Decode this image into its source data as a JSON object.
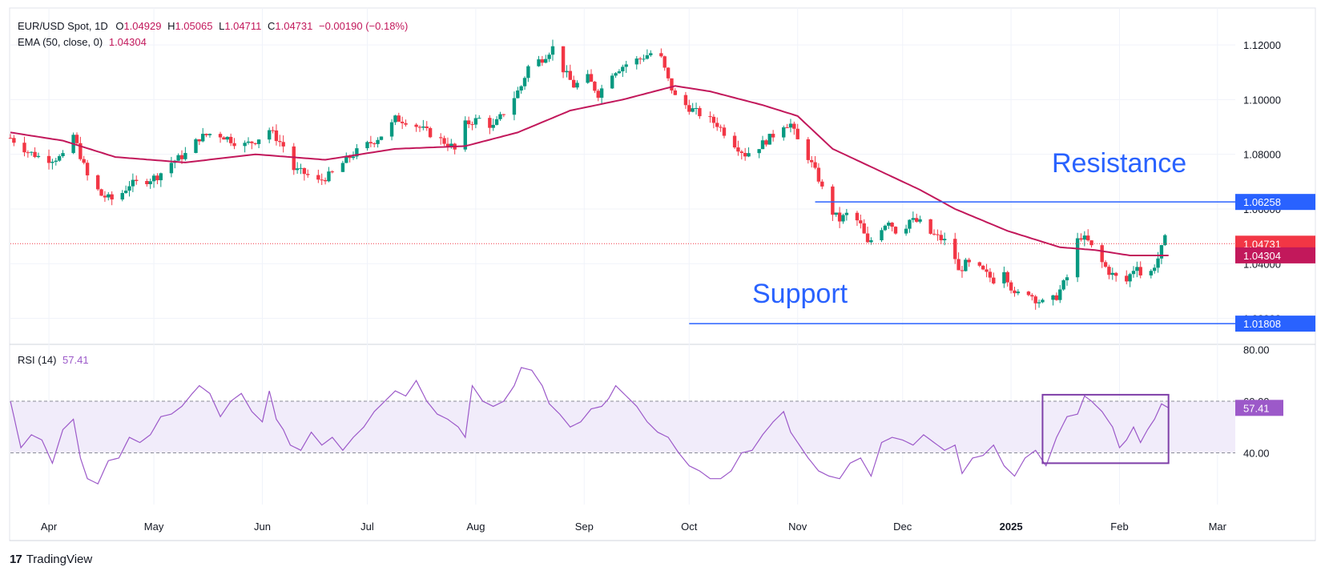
{
  "header": {
    "symbol": "EUR/USD Spot, 1D",
    "ohlc_label_o": "O",
    "open": "1.04929",
    "ohlc_label_h": "H",
    "high": "1.05065",
    "ohlc_label_l": "L",
    "low": "1.04711",
    "ohlc_label_c": "C",
    "close": "1.04731",
    "change": "−0.00190 (−0.18%)",
    "ema_label": "EMA (50, close, 0)",
    "ema_value": "1.04304",
    "rsi_label": "RSI (14)",
    "rsi_value": "57.41"
  },
  "annotations": {
    "resistance": "Resistance",
    "support": "Support"
  },
  "branding": {
    "logo_mark": "17",
    "logo_text": "TradingView"
  },
  "colors": {
    "up": "#089981",
    "down": "#f23645",
    "ema": "#c2185b",
    "rsi": "#9c59c9",
    "rsi_band": "#f1ecfa",
    "level_line": "#2962ff",
    "annotation_text": "#2962ff",
    "price_dotted": "#f23645",
    "box": "#7e3ea8"
  },
  "chart_data": [
    {
      "type": "candlestick",
      "title": "EUR/USD Spot, 1D",
      "ylim": [
        1.0105,
        1.1335
      ],
      "y_ticks": [
        "1.12000",
        "1.10000",
        "1.08000",
        "1.06000",
        "1.04000",
        "1.02000"
      ],
      "x_ticks": [
        "Apr",
        "May",
        "Jun",
        "Jul",
        "Aug",
        "Sep",
        "Oct",
        "Nov",
        "Dec",
        "2025",
        "Feb",
        "Mar"
      ],
      "x_tick_positions_days": [
        11,
        41,
        72,
        102,
        133,
        164,
        194,
        225,
        255,
        286,
        317,
        345
      ],
      "start_day_offset": 0,
      "first_date": "2024-03-21",
      "last_day_index": 331,
      "price_anchors": [
        [
          0,
          1.086
        ],
        [
          5,
          1.081
        ],
        [
          10,
          1.078
        ],
        [
          15,
          1.079
        ],
        [
          18,
          1.087
        ],
        [
          22,
          1.072
        ],
        [
          26,
          1.065
        ],
        [
          30,
          1.063
        ],
        [
          34,
          1.069
        ],
        [
          38,
          1.07
        ],
        [
          42,
          1.072
        ],
        [
          46,
          1.077
        ],
        [
          50,
          1.08
        ],
        [
          54,
          1.086
        ],
        [
          58,
          1.088
        ],
        [
          62,
          1.086
        ],
        [
          66,
          1.083
        ],
        [
          70,
          1.085
        ],
        [
          74,
          1.089
        ],
        [
          78,
          1.083
        ],
        [
          80,
          1.075
        ],
        [
          84,
          1.073
        ],
        [
          88,
          1.07
        ],
        [
          92,
          1.073
        ],
        [
          96,
          1.078
        ],
        [
          100,
          1.082
        ],
        [
          104,
          1.085
        ],
        [
          108,
          1.089
        ],
        [
          110,
          1.093
        ],
        [
          114,
          1.092
        ],
        [
          118,
          1.089
        ],
        [
          122,
          1.086
        ],
        [
          126,
          1.083
        ],
        [
          128,
          1.08
        ],
        [
          130,
          1.091
        ],
        [
          134,
          1.093
        ],
        [
          138,
          1.09
        ],
        [
          142,
          1.097
        ],
        [
          146,
          1.105
        ],
        [
          148,
          1.112
        ],
        [
          152,
          1.115
        ],
        [
          155,
          1.119
        ],
        [
          158,
          1.111
        ],
        [
          161,
          1.105
        ],
        [
          165,
          1.108
        ],
        [
          168,
          1.102
        ],
        [
          172,
          1.11
        ],
        [
          176,
          1.113
        ],
        [
          180,
          1.115
        ],
        [
          183,
          1.117
        ],
        [
          186,
          1.115
        ],
        [
          188,
          1.107
        ],
        [
          190,
          1.101
        ],
        [
          194,
          1.097
        ],
        [
          198,
          1.094
        ],
        [
          202,
          1.091
        ],
        [
          206,
          1.085
        ],
        [
          210,
          1.08
        ],
        [
          214,
          1.083
        ],
        [
          218,
          1.087
        ],
        [
          220,
          1.091
        ],
        [
          223,
          1.091
        ],
        [
          225,
          1.085
        ],
        [
          228,
          1.079
        ],
        [
          231,
          1.071
        ],
        [
          234,
          1.06
        ],
        [
          237,
          1.056
        ],
        [
          240,
          1.059
        ],
        [
          243,
          1.054
        ],
        [
          245,
          1.047
        ],
        [
          248,
          1.052
        ],
        [
          251,
          1.056
        ],
        [
          254,
          1.05
        ],
        [
          257,
          1.056
        ],
        [
          260,
          1.055
        ],
        [
          263,
          1.051
        ],
        [
          266,
          1.049
        ],
        [
          269,
          1.047
        ],
        [
          271,
          1.037
        ],
        [
          273,
          1.04
        ],
        [
          276,
          1.039
        ],
        [
          279,
          1.036
        ],
        [
          282,
          1.033
        ],
        [
          284,
          1.038
        ],
        [
          287,
          1.028
        ],
        [
          290,
          1.031
        ],
        [
          293,
          1.027
        ],
        [
          296,
          1.025
        ],
        [
          299,
          1.028
        ],
        [
          302,
          1.035
        ],
        [
          304,
          1.047
        ],
        [
          306,
          1.05
        ],
        [
          308,
          1.048
        ],
        [
          311,
          1.042
        ],
        [
          314,
          1.037
        ],
        [
          316,
          1.035
        ],
        [
          318,
          1.031
        ],
        [
          320,
          1.036
        ],
        [
          322,
          1.04
        ],
        [
          324,
          1.032
        ],
        [
          326,
          1.037
        ],
        [
          328,
          1.042
        ],
        [
          330,
          1.049
        ],
        [
          331,
          1.047
        ]
      ],
      "ema_anchors": [
        [
          0,
          1.088
        ],
        [
          15,
          1.085
        ],
        [
          30,
          1.079
        ],
        [
          50,
          1.077
        ],
        [
          70,
          1.08
        ],
        [
          90,
          1.078
        ],
        [
          110,
          1.082
        ],
        [
          130,
          1.083
        ],
        [
          145,
          1.088
        ],
        [
          160,
          1.096
        ],
        [
          175,
          1.1
        ],
        [
          190,
          1.105
        ],
        [
          200,
          1.103
        ],
        [
          215,
          1.098
        ],
        [
          225,
          1.094
        ],
        [
          235,
          1.082
        ],
        [
          250,
          1.073
        ],
        [
          260,
          1.067
        ],
        [
          270,
          1.06
        ],
        [
          285,
          1.052
        ],
        [
          300,
          1.046
        ],
        [
          310,
          1.045
        ],
        [
          320,
          1.043
        ],
        [
          331,
          1.043
        ]
      ],
      "levels": [
        {
          "name": "Resistance",
          "value": 1.06258,
          "label": "1.06258",
          "start_day": 230
        },
        {
          "name": "Support",
          "value": 1.01808,
          "label": "1.01808",
          "start_day": 194
        }
      ],
      "last_price": {
        "value": 1.04731,
        "label": "1.04731"
      },
      "ema_last": {
        "value": 1.04304,
        "label": "1.04304"
      }
    },
    {
      "type": "line",
      "title": "RSI (14)",
      "ylim": [
        20,
        82
      ],
      "y_ticks": [
        "80.00",
        "60.00",
        "40.00"
      ],
      "band": [
        40,
        60
      ],
      "rsi_anchors": [
        [
          0,
          60
        ],
        [
          3,
          42
        ],
        [
          6,
          47
        ],
        [
          9,
          45
        ],
        [
          12,
          36
        ],
        [
          15,
          49
        ],
        [
          18,
          53
        ],
        [
          20,
          38
        ],
        [
          22,
          30
        ],
        [
          25,
          28
        ],
        [
          28,
          37
        ],
        [
          31,
          38
        ],
        [
          34,
          46
        ],
        [
          37,
          44
        ],
        [
          40,
          47
        ],
        [
          43,
          54
        ],
        [
          46,
          55
        ],
        [
          49,
          58
        ],
        [
          52,
          63
        ],
        [
          54,
          66
        ],
        [
          57,
          63
        ],
        [
          60,
          54
        ],
        [
          63,
          60
        ],
        [
          66,
          63
        ],
        [
          69,
          56
        ],
        [
          72,
          52
        ],
        [
          74,
          64
        ],
        [
          76,
          53
        ],
        [
          78,
          49
        ],
        [
          80,
          43
        ],
        [
          83,
          41
        ],
        [
          86,
          48
        ],
        [
          89,
          43
        ],
        [
          92,
          46
        ],
        [
          95,
          41
        ],
        [
          98,
          46
        ],
        [
          101,
          50
        ],
        [
          104,
          56
        ],
        [
          107,
          60
        ],
        [
          110,
          64
        ],
        [
          113,
          62
        ],
        [
          116,
          68
        ],
        [
          119,
          60
        ],
        [
          122,
          55
        ],
        [
          125,
          53
        ],
        [
          128,
          50
        ],
        [
          130,
          46
        ],
        [
          132,
          66
        ],
        [
          135,
          60
        ],
        [
          138,
          58
        ],
        [
          141,
          60
        ],
        [
          144,
          66
        ],
        [
          146,
          73
        ],
        [
          149,
          72
        ],
        [
          152,
          66
        ],
        [
          154,
          59
        ],
        [
          157,
          55
        ],
        [
          160,
          50
        ],
        [
          163,
          52
        ],
        [
          166,
          57
        ],
        [
          169,
          58
        ],
        [
          171,
          61
        ],
        [
          173,
          66
        ],
        [
          176,
          62
        ],
        [
          179,
          58
        ],
        [
          182,
          52
        ],
        [
          185,
          48
        ],
        [
          188,
          46
        ],
        [
          191,
          40
        ],
        [
          194,
          35
        ],
        [
          197,
          33
        ],
        [
          200,
          30
        ],
        [
          203,
          30
        ],
        [
          206,
          33
        ],
        [
          209,
          40
        ],
        [
          212,
          41
        ],
        [
          215,
          47
        ],
        [
          218,
          52
        ],
        [
          221,
          56
        ],
        [
          223,
          48
        ],
        [
          225,
          44
        ],
        [
          228,
          38
        ],
        [
          231,
          33
        ],
        [
          234,
          31
        ],
        [
          237,
          30
        ],
        [
          240,
          36
        ],
        [
          243,
          38
        ],
        [
          246,
          31
        ],
        [
          249,
          44
        ],
        [
          252,
          46
        ],
        [
          255,
          45
        ],
        [
          258,
          43
        ],
        [
          261,
          47
        ],
        [
          264,
          44
        ],
        [
          267,
          41
        ],
        [
          270,
          43
        ],
        [
          272,
          32
        ],
        [
          275,
          38
        ],
        [
          278,
          39
        ],
        [
          281,
          43
        ],
        [
          284,
          35
        ],
        [
          287,
          31
        ],
        [
          290,
          38
        ],
        [
          293,
          41
        ],
        [
          296,
          35
        ],
        [
          299,
          46
        ],
        [
          302,
          54
        ],
        [
          305,
          55
        ],
        [
          307,
          62
        ],
        [
          309,
          60
        ],
        [
          312,
          56
        ],
        [
          315,
          50
        ],
        [
          317,
          42
        ],
        [
          319,
          45
        ],
        [
          321,
          50
        ],
        [
          323,
          44
        ],
        [
          325,
          49
        ],
        [
          327,
          53
        ],
        [
          329,
          59
        ],
        [
          331,
          57.41
        ]
      ],
      "last": {
        "value": 57.41,
        "label": "57.41"
      },
      "highlight_box_days": [
        295,
        331
      ]
    }
  ]
}
